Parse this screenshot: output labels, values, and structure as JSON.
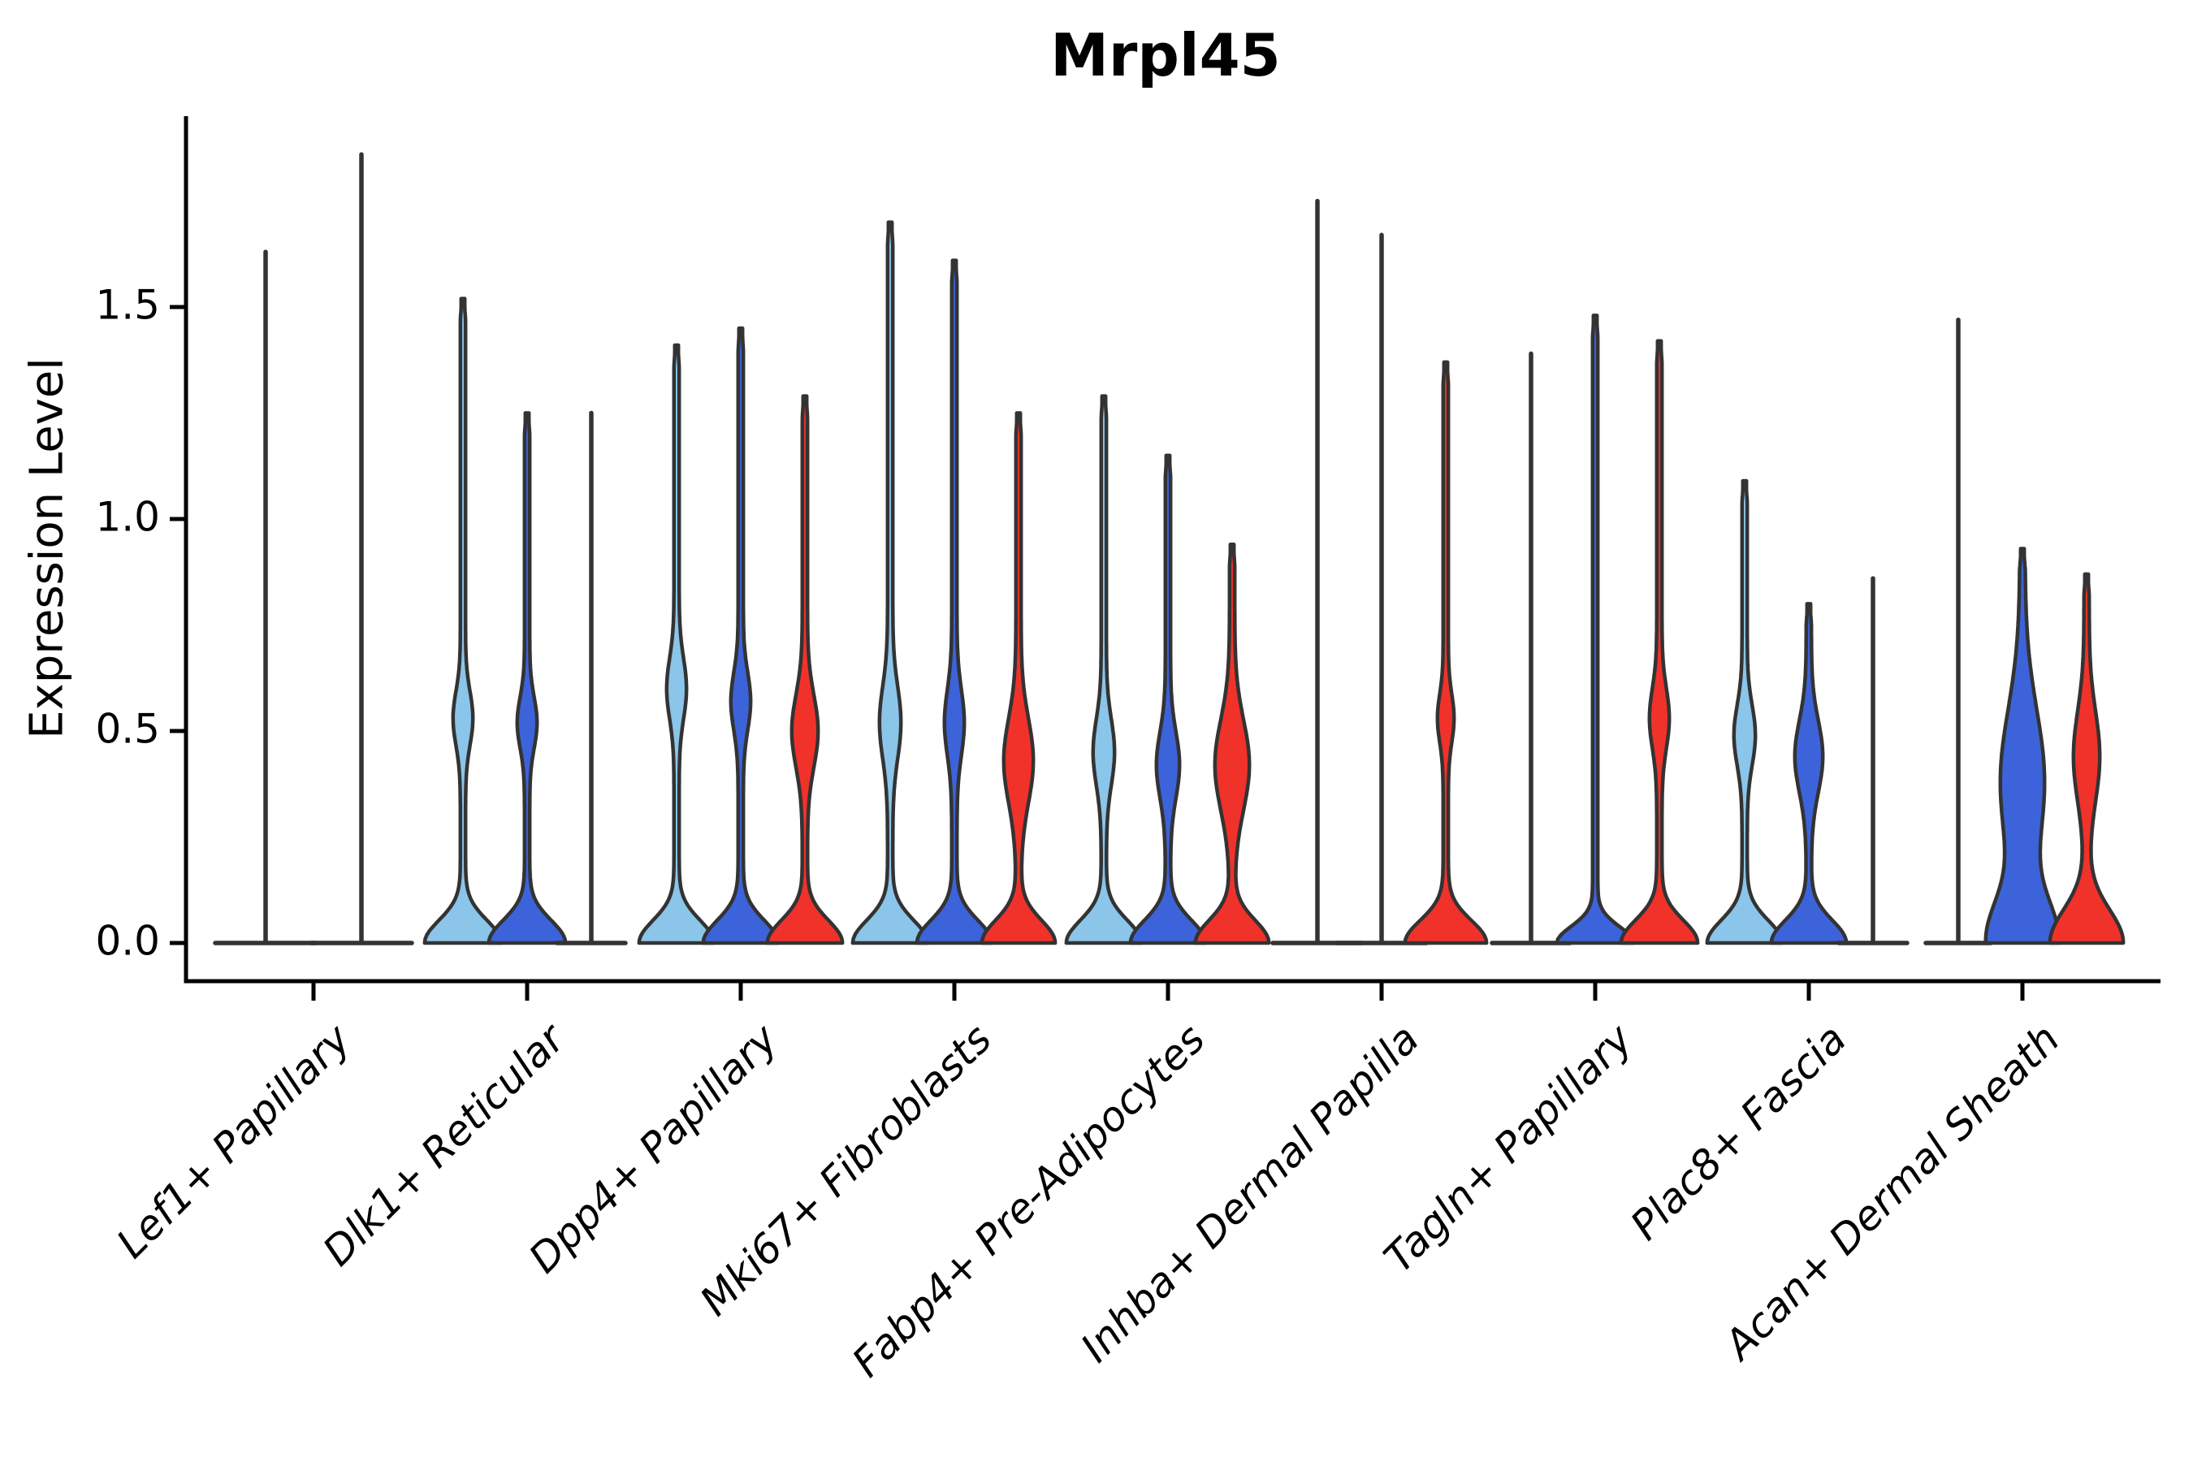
{
  "chart_data": {
    "type": "violin",
    "title": "Mrpl45",
    "ylabel": "Expression Level",
    "xlabel": "",
    "grid": false,
    "legend": "none",
    "ylim": [
      0,
      1.95
    ],
    "yticks": {
      "values": [
        0.0,
        0.5,
        1.0,
        1.5
      ],
      "labels": [
        "0.0",
        "0.5",
        "1.0",
        "1.5"
      ]
    },
    "categories": [
      "Lef1+ Papillary",
      "Dlk1+ Reticular",
      "Dpp4+ Papillary",
      "Mki67+ Fibroblasts",
      "Fabp4+ Pre-Adipocytes",
      "Inhba+ Dermal Papilla",
      "Tagln+ Papillary",
      "Plac8+ Fascia",
      "Acan+ Dermal Sheath"
    ],
    "splits": [
      {
        "name": "light-blue",
        "color": "#8BC5E9"
      },
      {
        "name": "dark-blue",
        "color": "#3C63D9"
      },
      {
        "name": "red",
        "color": "#F0322B"
      }
    ],
    "outline_color": "#333333",
    "axis_color": "#000000",
    "violins": [
      {
        "category": "Lef1+ Papillary",
        "split": "light-blue",
        "max": 1.63,
        "degenerate": true,
        "flat_halfwidth": 62
      },
      {
        "category": "Lef1+ Papillary",
        "split": "dark-blue",
        "max": 1.86,
        "degenerate": true,
        "flat_halfwidth": 62
      },
      {
        "category": "Dlk1+ Reticular",
        "split": "light-blue",
        "max": 1.52,
        "degenerate": false,
        "bell": {
          "w": 44,
          "h": 0.075
        },
        "bulge": {
          "c": 0.53,
          "s": 0.09,
          "w": 9
        }
      },
      {
        "category": "Dlk1+ Reticular",
        "split": "dark-blue",
        "max": 1.25,
        "degenerate": false,
        "bell": {
          "w": 44,
          "h": 0.075
        },
        "bulge": {
          "c": 0.52,
          "s": 0.085,
          "w": 9
        }
      },
      {
        "category": "Dlk1+ Reticular",
        "split": "red",
        "max": 1.25,
        "degenerate": true,
        "flat_halfwidth": 42
      },
      {
        "category": "Dpp4+ Papillary",
        "split": "light-blue",
        "max": 1.41,
        "degenerate": false,
        "bell": {
          "w": 43,
          "h": 0.075
        },
        "bulge": {
          "c": 0.6,
          "s": 0.1,
          "w": 9
        }
      },
      {
        "category": "Dpp4+ Papillary",
        "split": "dark-blue",
        "max": 1.45,
        "degenerate": false,
        "bell": {
          "w": 43,
          "h": 0.075
        },
        "bulge": {
          "c": 0.57,
          "s": 0.095,
          "w": 9
        }
      },
      {
        "category": "Dpp4+ Papillary",
        "split": "red",
        "max": 1.29,
        "degenerate": false,
        "bell": {
          "w": 43,
          "h": 0.075
        },
        "bulge": {
          "c": 0.5,
          "s": 0.12,
          "w": 13
        }
      },
      {
        "category": "Mki67+ Fibroblasts",
        "split": "light-blue",
        "max": 1.7,
        "degenerate": false,
        "bell": {
          "w": 43,
          "h": 0.075
        },
        "bulge": {
          "c": 0.52,
          "s": 0.12,
          "w": 10
        }
      },
      {
        "category": "Mki67+ Fibroblasts",
        "split": "dark-blue",
        "max": 1.61,
        "degenerate": false,
        "bell": {
          "w": 43,
          "h": 0.075
        },
        "bulge": {
          "c": 0.52,
          "s": 0.11,
          "w": 9
        }
      },
      {
        "category": "Mki67+ Fibroblasts",
        "split": "red",
        "max": 1.25,
        "degenerate": false,
        "bell": {
          "w": 42,
          "h": 0.075
        },
        "bulge": {
          "c": 0.43,
          "s": 0.14,
          "w": 15
        }
      },
      {
        "category": "Fabp4+ Pre-Adipocytes",
        "split": "light-blue",
        "max": 1.29,
        "degenerate": false,
        "bell": {
          "w": 43,
          "h": 0.075
        },
        "bulge": {
          "c": 0.45,
          "s": 0.11,
          "w": 10
        }
      },
      {
        "category": "Fabp4+ Pre-Adipocytes",
        "split": "dark-blue",
        "max": 1.15,
        "degenerate": false,
        "bell": {
          "w": 43,
          "h": 0.075
        },
        "bulge": {
          "c": 0.42,
          "s": 0.11,
          "w": 11
        }
      },
      {
        "category": "Fabp4+ Pre-Adipocytes",
        "split": "red",
        "max": 0.94,
        "degenerate": false,
        "bell": {
          "w": 42,
          "h": 0.075
        },
        "bulge": {
          "c": 0.42,
          "s": 0.15,
          "w": 18
        }
      },
      {
        "category": "Inhba+ Dermal Papilla",
        "split": "light-blue",
        "max": 1.75,
        "degenerate": true,
        "flat_halfwidth": 55
      },
      {
        "category": "Inhba+ Dermal Papilla",
        "split": "dark-blue",
        "max": 1.67,
        "degenerate": true,
        "flat_halfwidth": 55
      },
      {
        "category": "Inhba+ Dermal Papilla",
        "split": "red",
        "max": 1.37,
        "degenerate": false,
        "bell": {
          "w": 47,
          "h": 0.075
        },
        "bulge": {
          "c": 0.53,
          "s": 0.08,
          "w": 7
        }
      },
      {
        "category": "Tagln+ Papillary",
        "split": "light-blue",
        "max": 1.39,
        "degenerate": true,
        "flat_halfwidth": 48
      },
      {
        "category": "Tagln+ Papillary",
        "split": "dark-blue",
        "max": 1.48,
        "degenerate": false,
        "bell": {
          "w": 44,
          "h": 0.055
        },
        "bulge": null
      },
      {
        "category": "Tagln+ Papillary",
        "split": "red",
        "max": 1.42,
        "degenerate": false,
        "bell": {
          "w": 44,
          "h": 0.075
        },
        "bulge": {
          "c": 0.53,
          "s": 0.1,
          "w": 9
        }
      },
      {
        "category": "Plac8+ Fascia",
        "split": "light-blue",
        "max": 1.09,
        "degenerate": false,
        "bell": {
          "w": 43,
          "h": 0.075
        },
        "bulge": {
          "c": 0.49,
          "s": 0.1,
          "w": 10
        }
      },
      {
        "category": "Plac8+ Fascia",
        "split": "dark-blue",
        "max": 0.8,
        "degenerate": false,
        "bell": {
          "w": 43,
          "h": 0.075
        },
        "bulge": {
          "c": 0.44,
          "s": 0.12,
          "w": 14
        }
      },
      {
        "category": "Plac8+ Fascia",
        "split": "red",
        "max": 0.86,
        "degenerate": true,
        "flat_halfwidth": 42
      },
      {
        "category": "Acan+ Dermal Sheath",
        "split": "light-blue",
        "max": 1.47,
        "degenerate": true,
        "flat_halfwidth": 40
      },
      {
        "category": "Acan+ Dermal Sheath",
        "split": "dark-blue",
        "max": 0.93,
        "degenerate": false,
        "bell": {
          "w": 40,
          "h": 0.14
        },
        "bulge": {
          "c": 0.38,
          "s": 0.24,
          "w": 24
        }
      },
      {
        "category": "Acan+ Dermal Sheath",
        "split": "red",
        "max": 0.87,
        "degenerate": false,
        "bell": {
          "w": 42,
          "h": 0.11
        },
        "bulge": {
          "c": 0.44,
          "s": 0.15,
          "w": 13
        }
      }
    ]
  }
}
